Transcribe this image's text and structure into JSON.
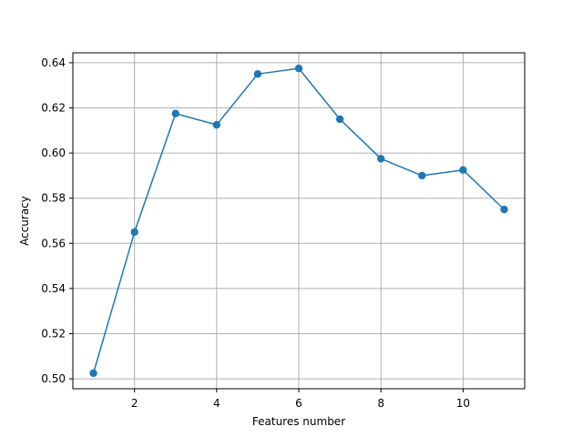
{
  "chart_data": {
    "type": "line",
    "title": "",
    "xlabel": "Features number",
    "ylabel": "Accuracy",
    "x": [
      1,
      2,
      3,
      4,
      5,
      6,
      7,
      8,
      9,
      10,
      11
    ],
    "series": [
      {
        "values": [
          0.5025,
          0.565,
          0.6175,
          0.6125,
          0.635,
          0.6375,
          0.615,
          0.5975,
          0.59,
          0.5925,
          0.575
        ],
        "color": "#1f77b4",
        "marker": "circle"
      }
    ],
    "xlim": [
      0.5,
      11.5
    ],
    "ylim": [
      0.4956,
      0.6444
    ],
    "xticks": [
      2,
      4,
      6,
      8,
      10
    ],
    "xtick_labels": [
      "2",
      "4",
      "6",
      "8",
      "10"
    ],
    "yticks": [
      0.5,
      0.52,
      0.54,
      0.56,
      0.58,
      0.6,
      0.62,
      0.64
    ],
    "ytick_labels": [
      "0.50",
      "0.52",
      "0.54",
      "0.56",
      "0.58",
      "0.60",
      "0.62",
      "0.64"
    ],
    "grid": true,
    "grid_color": "#b0b0b0"
  }
}
